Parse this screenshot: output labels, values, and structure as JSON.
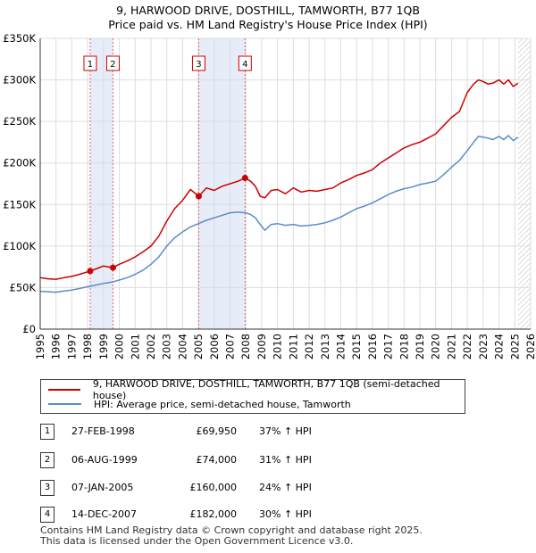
{
  "title_line1": "9, HARWOOD DRIVE, DOSTHILL, TAMWORTH, B77 1QB",
  "title_line2": "Price paid vs. HM Land Registry's House Price Index (HPI)",
  "colors": {
    "price": "#cc0000",
    "hpi": "#5b8ccc",
    "shade": "#e6ecf8",
    "grid": "#dddddd"
  },
  "legend": {
    "price_label": "9, HARWOOD DRIVE, DOSTHILL, TAMWORTH, B77 1QB (semi-detached house)",
    "hpi_label": "HPI: Average price, semi-detached house, Tamworth"
  },
  "transactions": [
    {
      "num": "1",
      "date": "27-FEB-1998",
      "price": "£69,950",
      "hpi": "37% ↑ HPI"
    },
    {
      "num": "2",
      "date": "06-AUG-1999",
      "price": "£74,000",
      "hpi": "31% ↑ HPI"
    },
    {
      "num": "3",
      "date": "07-JAN-2005",
      "price": "£160,000",
      "hpi": "24% ↑ HPI"
    },
    {
      "num": "4",
      "date": "14-DEC-2007",
      "price": "£182,000",
      "hpi": "30% ↑ HPI"
    }
  ],
  "footer_line1": "Contains HM Land Registry data © Crown copyright and database right 2025.",
  "footer_line2": "This data is licensed under the Open Government Licence v3.0.",
  "chart_data": {
    "type": "line",
    "ylim": [
      0,
      350000
    ],
    "xlim": [
      1995,
      2026
    ],
    "y_ticks": [
      0,
      50000,
      100000,
      150000,
      200000,
      250000,
      300000,
      350000
    ],
    "y_tick_labels": [
      "£0",
      "£50K",
      "£100K",
      "£150K",
      "£200K",
      "£250K",
      "£300K",
      "£350K"
    ],
    "x_ticks": [
      1995,
      1996,
      1997,
      1998,
      1999,
      2000,
      2001,
      2002,
      2003,
      2004,
      2005,
      2006,
      2007,
      2008,
      2009,
      2010,
      2011,
      2012,
      2013,
      2014,
      2015,
      2016,
      2017,
      2018,
      2019,
      2020,
      2021,
      2022,
      2023,
      2024,
      2025,
      2026
    ],
    "grid": true,
    "shaded_ranges": [
      [
        1998.16,
        1999.6
      ],
      [
        2005.02,
        2007.95
      ]
    ],
    "hatched_from": 2025.2,
    "markers": [
      {
        "label": "1",
        "x": 1998.16,
        "y": 69950
      },
      {
        "label": "2",
        "x": 1999.6,
        "y": 74000
      },
      {
        "label": "3",
        "x": 2005.02,
        "y": 160000
      },
      {
        "label": "4",
        "x": 2007.95,
        "y": 182000
      }
    ],
    "series": [
      {
        "name": "9, HARWOOD DRIVE, DOSTHILL, TAMWORTH, B77 1QB (semi-detached house)",
        "x": [
          1995,
          1995.5,
          1996,
          1996.5,
          1997,
          1997.5,
          1998.16,
          1998.6,
          1999.0,
          1999.6,
          2000.0,
          2000.5,
          2001.0,
          2001.5,
          2002.0,
          2002.5,
          2003.0,
          2003.5,
          2004.0,
          2004.5,
          2005.02,
          2005.5,
          2006.0,
          2006.5,
          2007.0,
          2007.5,
          2007.95,
          2008.3,
          2008.6,
          2008.9,
          2009.2,
          2009.6,
          2010.0,
          2010.5,
          2011.0,
          2011.5,
          2012.0,
          2012.5,
          2013.0,
          2013.5,
          2014.0,
          2014.5,
          2015.0,
          2015.5,
          2016.0,
          2016.5,
          2017.0,
          2017.5,
          2018.0,
          2018.5,
          2019.0,
          2019.5,
          2020.0,
          2020.5,
          2021.0,
          2021.5,
          2022.0,
          2022.4,
          2022.7,
          2023.0,
          2023.3,
          2023.6,
          2024.0,
          2024.3,
          2024.6,
          2024.9,
          2025.2
        ],
        "values": [
          62000,
          60500,
          60000,
          62000,
          63500,
          66000,
          69950,
          73000,
          76000,
          74000,
          78000,
          82000,
          87000,
          93000,
          100000,
          112000,
          130000,
          145000,
          155000,
          168000,
          160000,
          170000,
          167000,
          172000,
          175000,
          178000,
          182000,
          178000,
          172000,
          160000,
          158000,
          167000,
          168000,
          163000,
          170000,
          165000,
          167000,
          166000,
          168000,
          170000,
          176000,
          180000,
          185000,
          188000,
          192000,
          200000,
          206000,
          212000,
          218000,
          222000,
          225000,
          230000,
          235000,
          245000,
          255000,
          262000,
          285000,
          295000,
          300000,
          298000,
          295000,
          296000,
          300000,
          295000,
          300000,
          292000,
          296000
        ]
      },
      {
        "name": "HPI: Average price, semi-detached house, Tamworth",
        "x": [
          1995,
          1995.5,
          1996,
          1996.5,
          1997,
          1997.5,
          1998.0,
          1998.5,
          1999.0,
          1999.5,
          2000.0,
          2000.5,
          2001.0,
          2001.5,
          2002.0,
          2002.5,
          2003.0,
          2003.5,
          2004.0,
          2004.5,
          2005.0,
          2005.5,
          2006.0,
          2006.5,
          2007.0,
          2007.5,
          2008.0,
          2008.3,
          2008.6,
          2008.9,
          2009.2,
          2009.6,
          2010.0,
          2010.5,
          2011.0,
          2011.5,
          2012.0,
          2012.5,
          2013.0,
          2013.5,
          2014.0,
          2014.5,
          2015.0,
          2015.5,
          2016.0,
          2016.5,
          2017.0,
          2017.5,
          2018.0,
          2018.5,
          2019.0,
          2019.5,
          2020.0,
          2020.5,
          2021.0,
          2021.5,
          2022.0,
          2022.4,
          2022.7,
          2023.0,
          2023.3,
          2023.6,
          2024.0,
          2024.3,
          2024.6,
          2024.9,
          2025.2
        ],
        "values": [
          45500,
          45000,
          44500,
          46000,
          47000,
          49000,
          51000,
          53000,
          55000,
          56500,
          59000,
          62000,
          66000,
          71000,
          78000,
          87000,
          100000,
          110000,
          117000,
          123000,
          127000,
          131000,
          134000,
          137000,
          140000,
          141000,
          140000,
          138000,
          134000,
          126000,
          119000,
          126000,
          127000,
          125000,
          126000,
          124000,
          125000,
          126000,
          128000,
          131000,
          135000,
          140000,
          145000,
          148000,
          152000,
          157000,
          162000,
          166000,
          169000,
          171000,
          174000,
          176000,
          178000,
          186000,
          195000,
          203000,
          215000,
          225000,
          232000,
          231000,
          230000,
          228000,
          232000,
          228000,
          233000,
          227000,
          231000
        ]
      }
    ]
  }
}
